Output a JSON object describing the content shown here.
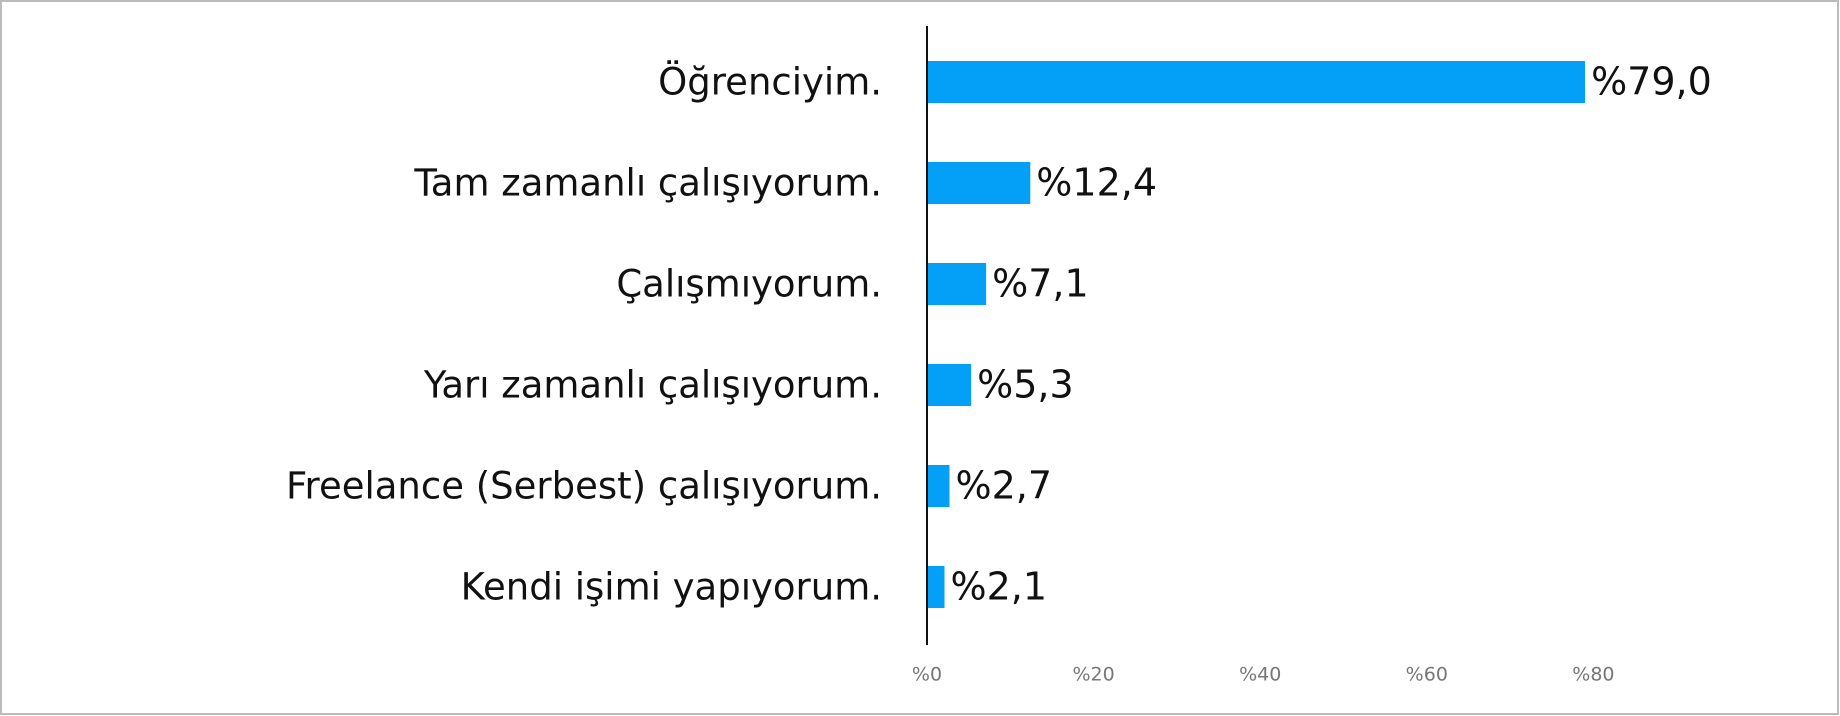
{
  "chart_data": {
    "type": "bar",
    "orientation": "horizontal",
    "categories": [
      "Öğrenciyim.",
      "Tam zamanlı çalışıyorum.",
      "Çalışmıyorum.",
      "Yarı zamanlı çalışıyorum.",
      "Freelance (Serbest) çalışıyorum.",
      "Kendi işimi yapıyorum."
    ],
    "values": [
      79.0,
      12.4,
      7.1,
      5.3,
      2.7,
      2.1
    ],
    "value_labels": [
      "%79,0",
      "%12,4",
      "%7,1",
      "%5,3",
      "%2,7",
      "%2,1"
    ],
    "color": "#049ff7",
    "xlim": [
      0,
      100
    ],
    "xticks": [
      {
        "value": 0,
        "label": "%0"
      },
      {
        "value": 20,
        "label": "%20"
      },
      {
        "value": 40,
        "label": "%40"
      },
      {
        "value": 60,
        "label": "%60"
      },
      {
        "value": 80,
        "label": "%80"
      }
    ],
    "grid": false
  }
}
